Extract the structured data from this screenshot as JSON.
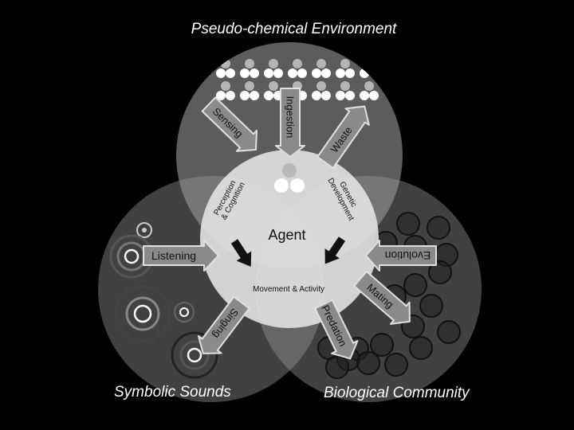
{
  "regions": {
    "environment": "Pseudo-chemical Environment",
    "sounds": "Symbolic Sounds",
    "community": "Biological Community"
  },
  "agent": {
    "title": "Agent",
    "perception": [
      "Perception",
      "& Cognition"
    ],
    "genetic": [
      "Genetic",
      "Development"
    ],
    "movement": "Movement & Activity"
  },
  "arrows": {
    "sensing": "Sensing",
    "ingestion": "Ingestion",
    "waste": "Waste",
    "listening": "Listening",
    "singing": "Singing",
    "evolution": "Evolution",
    "mating": "Mating",
    "predation": "Predation"
  },
  "colors": {
    "background": "#000000",
    "region_fill": "#9a9a9a",
    "agent_fill": "#e6e6e6",
    "arrow_fill": "#8a8a8a",
    "arrow_stroke": "#e0e0e0"
  }
}
